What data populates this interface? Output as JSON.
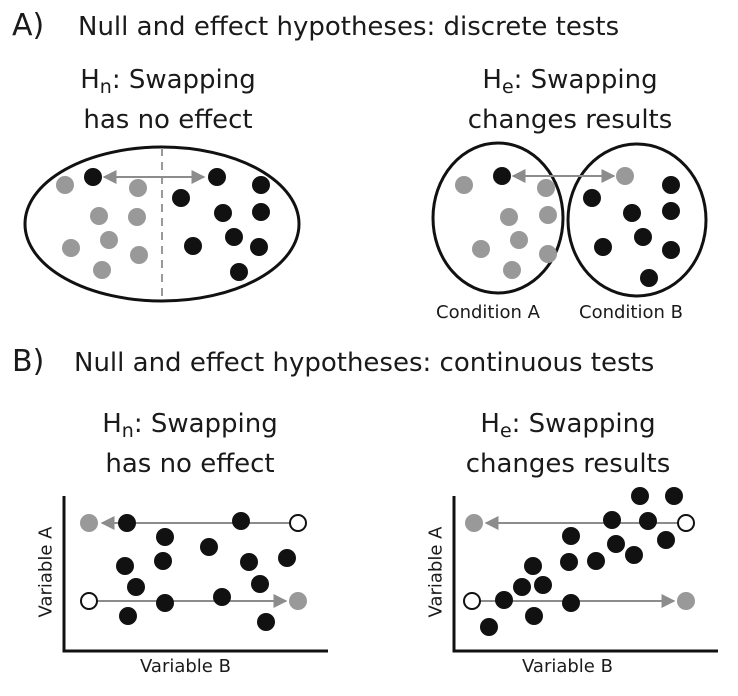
{
  "section_a": {
    "letter": "A)",
    "title": "Null and effect hypotheses: discrete tests",
    "null": {
      "symbol": "H",
      "subscript": "n",
      "line1_rest": ": Swapping",
      "line2": "has no effect"
    },
    "effect": {
      "symbol": "H",
      "subscript": "e",
      "line1_rest": ": Swapping",
      "line2": "changes results"
    },
    "condition_a": "Condition A",
    "condition_b": "Condition B"
  },
  "section_b": {
    "letter": "B)",
    "title": "Null and effect hypotheses: continuous tests",
    "null": {
      "symbol": "H",
      "subscript": "n",
      "line1_rest": ": Swapping",
      "line2": "has no effect"
    },
    "effect": {
      "symbol": "H",
      "subscript": "e",
      "line1_rest": ": Swapping",
      "line2": "changes results"
    },
    "left_plot": {
      "ylabel": "Variable A",
      "xlabel": "Variable B"
    },
    "right_plot": {
      "ylabel": "Variable A",
      "xlabel": "Variable B"
    }
  },
  "colors": {
    "black_dot": "#111111",
    "gray_dot": "#999999",
    "arrow": "#8c8c8c",
    "outline": "#111111"
  }
}
